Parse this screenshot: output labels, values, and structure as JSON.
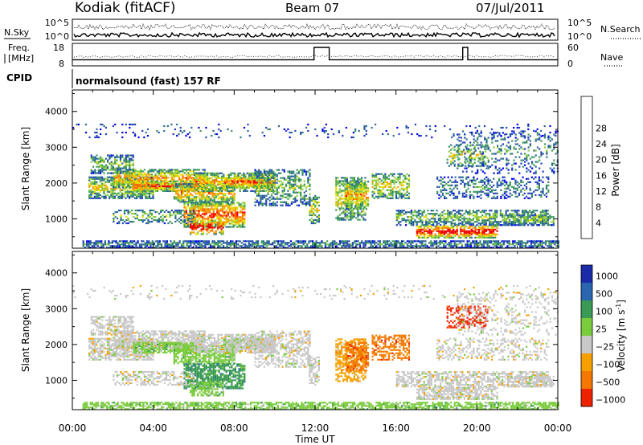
{
  "header": {
    "station": "Kodiak (fitACF)",
    "beam": "Beam 07",
    "date": "07/Jul/2011",
    "cpid_label": "CPID",
    "cpid_value": "normalsound (fast) 157 RF"
  },
  "chart_data": [
    {
      "type": "line",
      "name": "nsky-nsearch-panel",
      "left_label": "N.Sky",
      "right_label": "N.Search",
      "left_ticks": [
        "10^5",
        "10^0"
      ],
      "right_ticks": [
        "10^5",
        "10^0"
      ]
    },
    {
      "type": "line",
      "name": "freq-nave-panel",
      "left_label_line1": "Freq.",
      "left_label_line2": "[MHz]",
      "right_label": "Nave",
      "left_ticks": [
        18,
        8
      ],
      "right_ticks": [
        60,
        0
      ],
      "freq_ylim": [
        8,
        18
      ],
      "freq_segments": [
        {
          "t0": 0.0,
          "t1": 11.95,
          "value": 10.7
        },
        {
          "t0": 11.95,
          "t1": 12.7,
          "value": 16.2
        },
        {
          "t0": 12.7,
          "t1": 19.3,
          "value": 10.7
        },
        {
          "t0": 19.3,
          "t1": 19.55,
          "value": 16.2
        },
        {
          "t0": 19.55,
          "t1": 24.0,
          "value": 10.7
        }
      ]
    },
    {
      "type": "heatmap",
      "name": "power-panel",
      "ylabel": "Slant Range [km]",
      "yticks": [
        1000,
        2000,
        3000,
        4000
      ],
      "ylim": [
        180,
        4600
      ],
      "colorbar_label": "Power [dB]",
      "colorbar_ticks": [
        4,
        8,
        12,
        16,
        20,
        24,
        28
      ],
      "colors": [
        "#0000ee",
        "#2244bb",
        "#2b6e8c",
        "#3b9a55",
        "#8ccc3a",
        "#e8dc00",
        "#f5a000",
        "#ff6a00",
        "#ee0000"
      ]
    },
    {
      "type": "heatmap",
      "name": "velocity-panel",
      "ylabel": "Slant Range [km]",
      "yticks": [
        1000,
        2000,
        3000,
        4000
      ],
      "ylim": [
        180,
        4600
      ],
      "xlabel": "Time UT",
      "xticks": [
        "00:00",
        "04:00",
        "08:00",
        "12:00",
        "16:00",
        "20:00",
        "00:00"
      ],
      "colorbar_label_main": "Velocity [m s",
      "colorbar_label_sup": "-1",
      "colorbar_label_end": "]",
      "colorbar_ticks": [
        "1000",
        "500",
        "100",
        "25",
        "−25",
        "−100",
        "−500",
        "−1000"
      ],
      "colors": [
        "#1a2aa8",
        "#2a66b0",
        "#3a9a55",
        "#7acc3c",
        "#c8c8c8",
        "#f5a000",
        "#f47800",
        "#ee2200"
      ]
    }
  ]
}
